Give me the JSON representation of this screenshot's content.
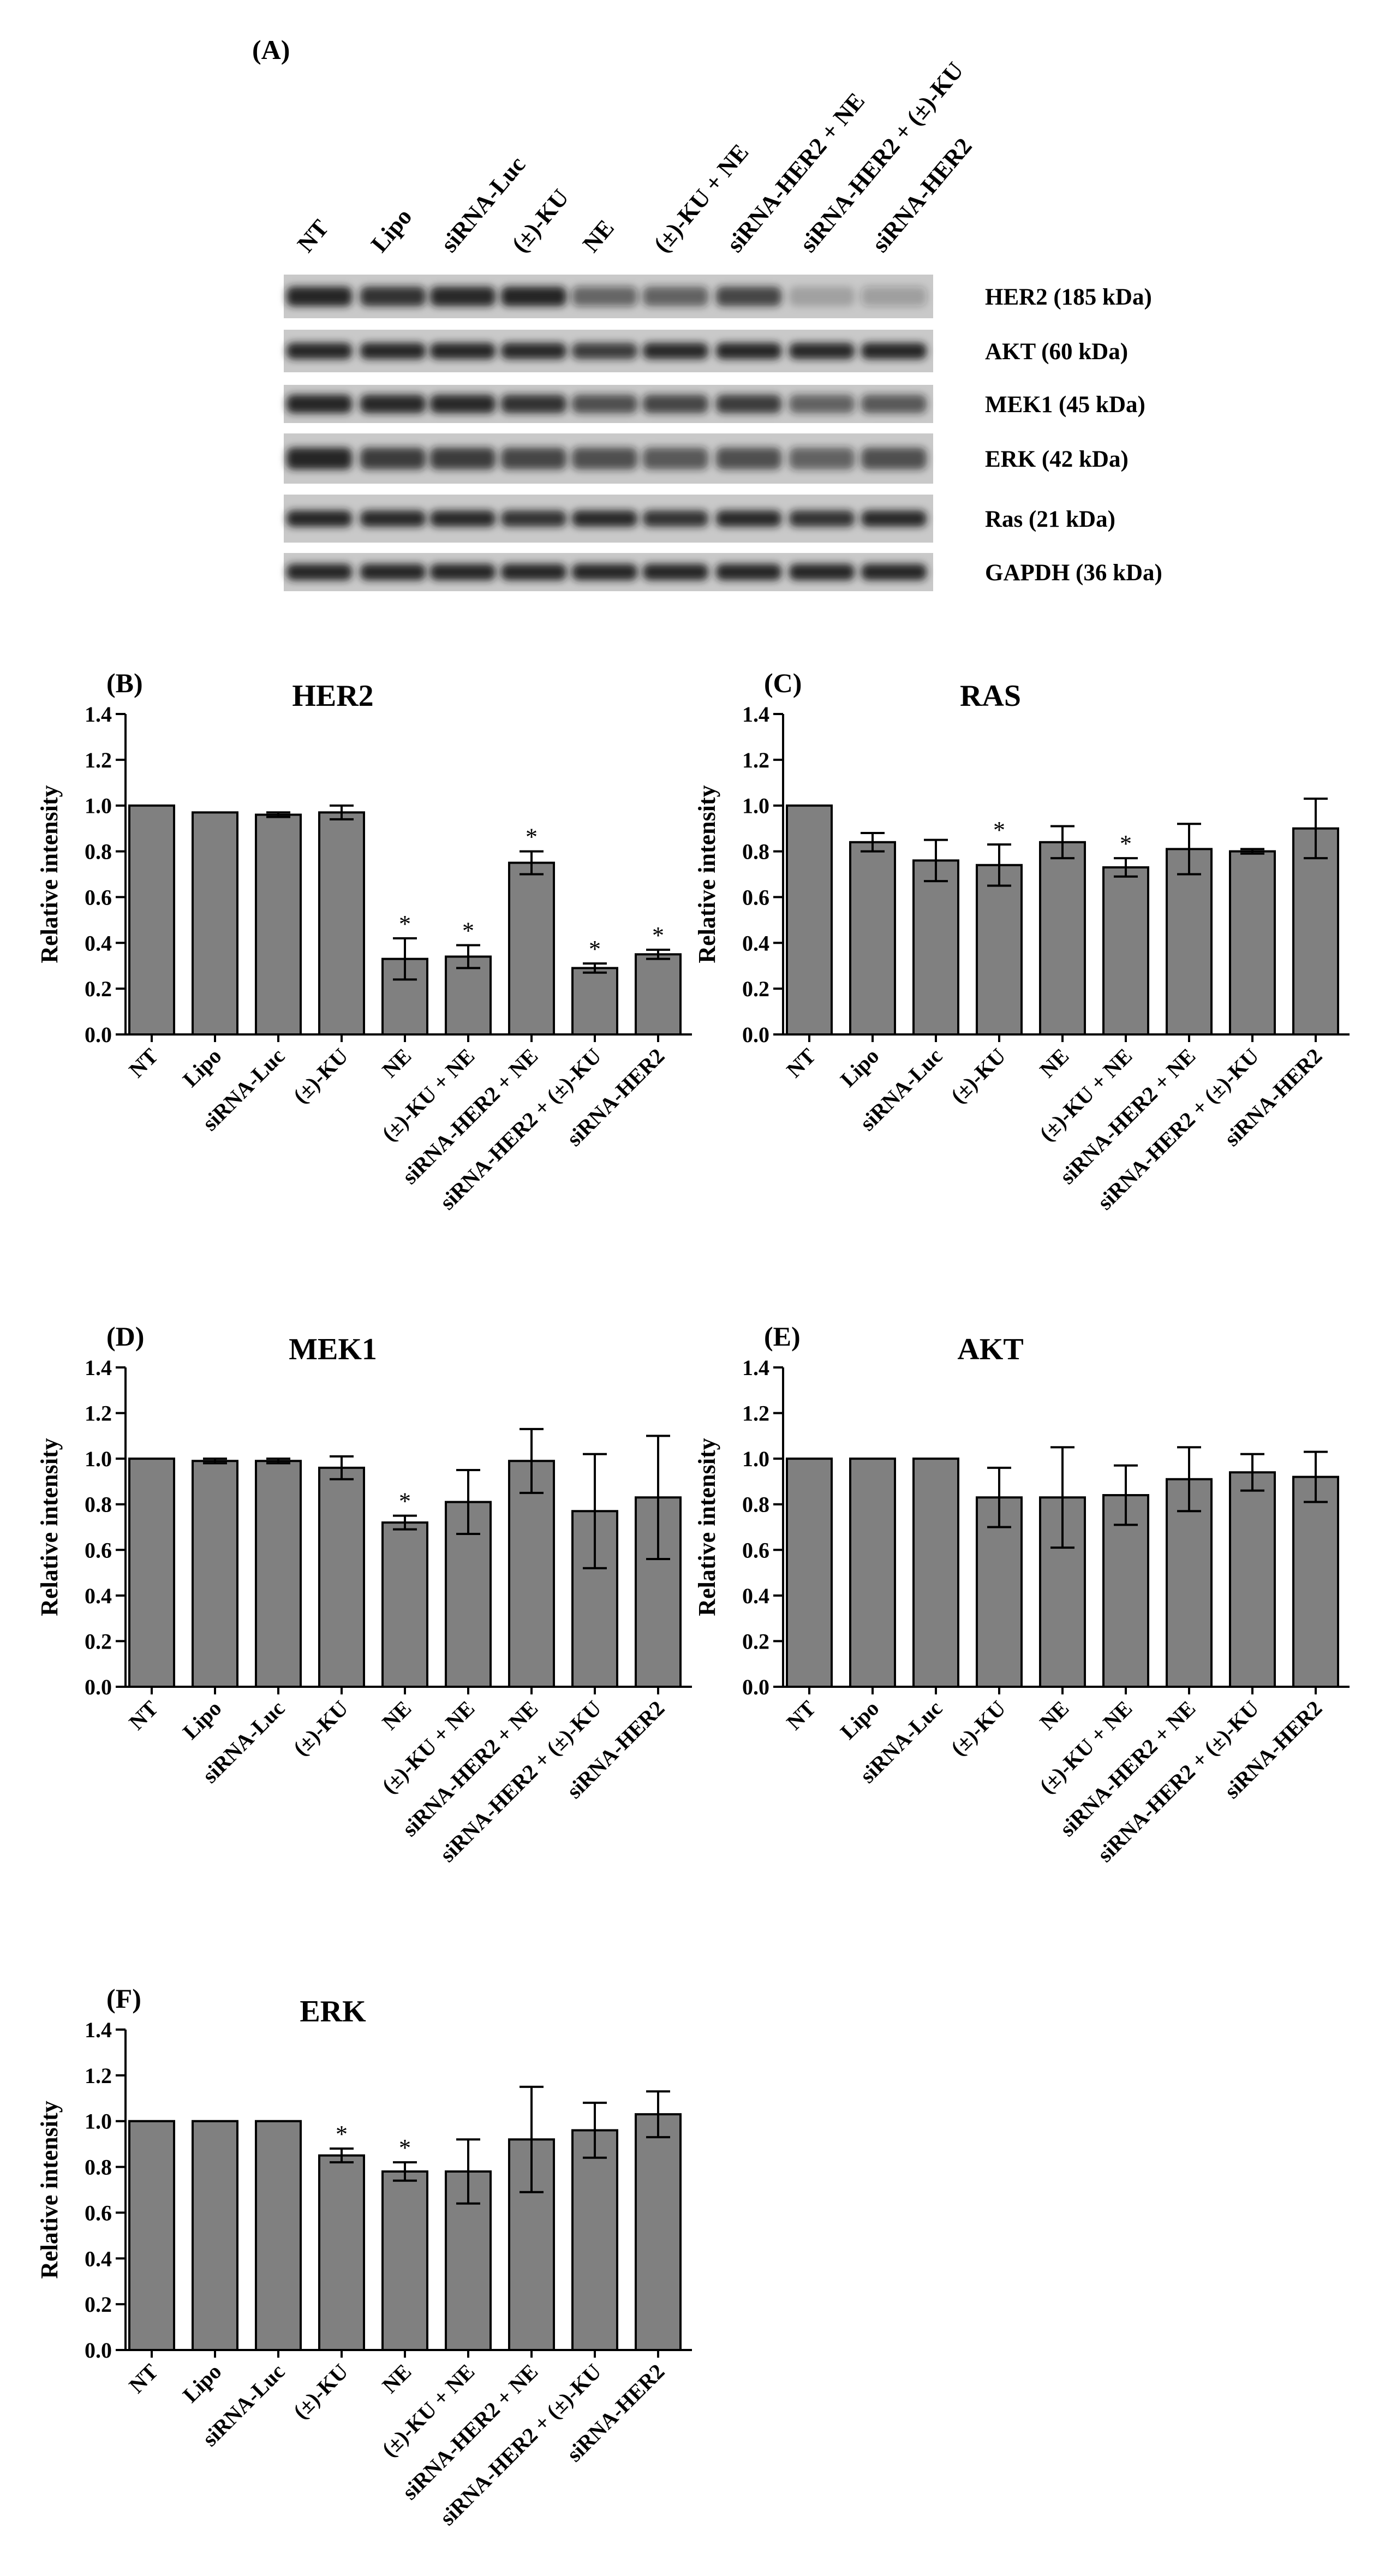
{
  "panel_a": {
    "label": "(A)",
    "lanes": [
      "NT",
      "Lipo",
      "siRNA-Luc",
      "(±)-KU",
      "NE",
      "(±)-KU + NE",
      "siRNA-HER2 + NE",
      "siRNA-HER2 + (±)-KU",
      "siRNA-HER2"
    ],
    "bands": [
      {
        "name": "HER2 (185 kDa)",
        "intensity": [
          0.95,
          0.85,
          0.9,
          0.92,
          0.55,
          0.6,
          0.75,
          0.2,
          0.25
        ]
      },
      {
        "name": "AKT (60 kDa)",
        "intensity": [
          0.95,
          0.95,
          0.95,
          0.9,
          0.8,
          0.9,
          0.95,
          0.9,
          0.95
        ]
      },
      {
        "name": "MEK1 (45 kDa)",
        "intensity": [
          0.95,
          0.9,
          0.9,
          0.85,
          0.7,
          0.75,
          0.8,
          0.6,
          0.65
        ]
      },
      {
        "name": "ERK (42 kDa)",
        "intensity": [
          0.95,
          0.8,
          0.8,
          0.75,
          0.7,
          0.65,
          0.7,
          0.6,
          0.7
        ]
      },
      {
        "name": "Ras (21 kDa)",
        "intensity": [
          0.95,
          0.9,
          0.9,
          0.85,
          0.9,
          0.85,
          0.9,
          0.85,
          0.9
        ]
      },
      {
        "name": "GAPDH (36 kDa)",
        "intensity": [
          0.95,
          0.95,
          0.95,
          0.95,
          0.95,
          0.95,
          0.95,
          0.95,
          0.95
        ]
      }
    ]
  },
  "chart_data": [
    {
      "label": "(B)",
      "type": "bar",
      "title": "HER2",
      "ylabel": "Relative intensity",
      "ylim": [
        0,
        1.4
      ],
      "yticks": [
        "0.0",
        "0.2",
        "0.4",
        "0.6",
        "0.8",
        "1.0",
        "1.2",
        "1.4"
      ],
      "categories": [
        "NT",
        "Lipo",
        "siRNA-Luc",
        "(±)-KU",
        "NE",
        "(±)-KU + NE",
        "siRNA-HER2 + NE",
        "siRNA-HER2 + (±)-KU",
        "siRNA-HER2"
      ],
      "values": [
        1.0,
        0.97,
        0.96,
        0.97,
        0.33,
        0.34,
        0.75,
        0.29,
        0.35
      ],
      "errors": [
        0,
        0,
        0.01,
        0.03,
        0.09,
        0.05,
        0.05,
        0.02,
        0.02
      ],
      "significance": [
        "",
        "",
        "",
        "",
        "*",
        "*",
        "*",
        "*",
        "*"
      ]
    },
    {
      "label": "(C)",
      "type": "bar",
      "title": "RAS",
      "ylabel": "Relative intensity",
      "ylim": [
        0,
        1.4
      ],
      "yticks": [
        "0.0",
        "0.2",
        "0.4",
        "0.6",
        "0.8",
        "1.0",
        "1.2",
        "1.4"
      ],
      "categories": [
        "NT",
        "Lipo",
        "siRNA-Luc",
        "(±)-KU",
        "NE",
        "(±)-KU + NE",
        "siRNA-HER2 + NE",
        "siRNA-HER2 + (±)-KU",
        "siRNA-HER2"
      ],
      "values": [
        1.0,
        0.84,
        0.76,
        0.74,
        0.84,
        0.73,
        0.81,
        0.8,
        0.9
      ],
      "errors": [
        0,
        0.04,
        0.09,
        0.09,
        0.07,
        0.04,
        0.11,
        0.01,
        0.13
      ],
      "significance": [
        "",
        "",
        "",
        "*",
        "",
        "*",
        "",
        "",
        ""
      ]
    },
    {
      "label": "(D)",
      "type": "bar",
      "title": "MEK1",
      "ylabel": "Relative intensity",
      "ylim": [
        0,
        1.4
      ],
      "yticks": [
        "0.0",
        "0.2",
        "0.4",
        "0.6",
        "0.8",
        "1.0",
        "1.2",
        "1.4"
      ],
      "categories": [
        "NT",
        "Lipo",
        "siRNA-Luc",
        "(±)-KU",
        "NE",
        "(±)-KU + NE",
        "siRNA-HER2 + NE",
        "siRNA-HER2 + (±)-KU",
        "siRNA-HER2"
      ],
      "values": [
        1.0,
        0.99,
        0.99,
        0.96,
        0.72,
        0.81,
        0.99,
        0.77,
        0.83
      ],
      "errors": [
        0,
        0.01,
        0.01,
        0.05,
        0.03,
        0.14,
        0.14,
        0.25,
        0.27
      ],
      "significance": [
        "",
        "",
        "",
        "",
        "*",
        "",
        "",
        "",
        ""
      ]
    },
    {
      "label": "(E)",
      "type": "bar",
      "title": "AKT",
      "ylabel": "Relative intensity",
      "ylim": [
        0,
        1.4
      ],
      "yticks": [
        "0.0",
        "0.2",
        "0.4",
        "0.6",
        "0.8",
        "1.0",
        "1.2",
        "1.4"
      ],
      "categories": [
        "NT",
        "Lipo",
        "siRNA-Luc",
        "(±)-KU",
        "NE",
        "(±)-KU + NE",
        "siRNA-HER2 + NE",
        "siRNA-HER2 + (±)-KU",
        "siRNA-HER2"
      ],
      "values": [
        1.0,
        1.0,
        1.0,
        0.83,
        0.83,
        0.84,
        0.91,
        0.94,
        0.92
      ],
      "errors": [
        0,
        0,
        0,
        0.13,
        0.22,
        0.13,
        0.14,
        0.08,
        0.11
      ],
      "significance": [
        "",
        "",
        "",
        "",
        "",
        "",
        "",
        "",
        ""
      ]
    },
    {
      "label": "(F)",
      "type": "bar",
      "title": "ERK",
      "ylabel": "Relative intensity",
      "ylim": [
        0,
        1.4
      ],
      "yticks": [
        "0.0",
        "0.2",
        "0.4",
        "0.6",
        "0.8",
        "1.0",
        "1.2",
        "1.4"
      ],
      "categories": [
        "NT",
        "Lipo",
        "siRNA-Luc",
        "(±)-KU",
        "NE",
        "(±)-KU + NE",
        "siRNA-HER2 + NE",
        "siRNA-HER2 + (±)-KU",
        "siRNA-HER2"
      ],
      "values": [
        1.0,
        1.0,
        1.0,
        0.85,
        0.78,
        0.78,
        0.92,
        0.96,
        1.03
      ],
      "errors": [
        0,
        0,
        0,
        0.03,
        0.04,
        0.14,
        0.23,
        0.12,
        0.1
      ],
      "significance": [
        "",
        "",
        "",
        "*",
        "*",
        "",
        "",
        "",
        ""
      ]
    }
  ],
  "colors": {
    "bar_fill": "#808080",
    "stroke": "#000000",
    "blot_background": "#c9c9c9",
    "band": "#1a1a1a"
  }
}
